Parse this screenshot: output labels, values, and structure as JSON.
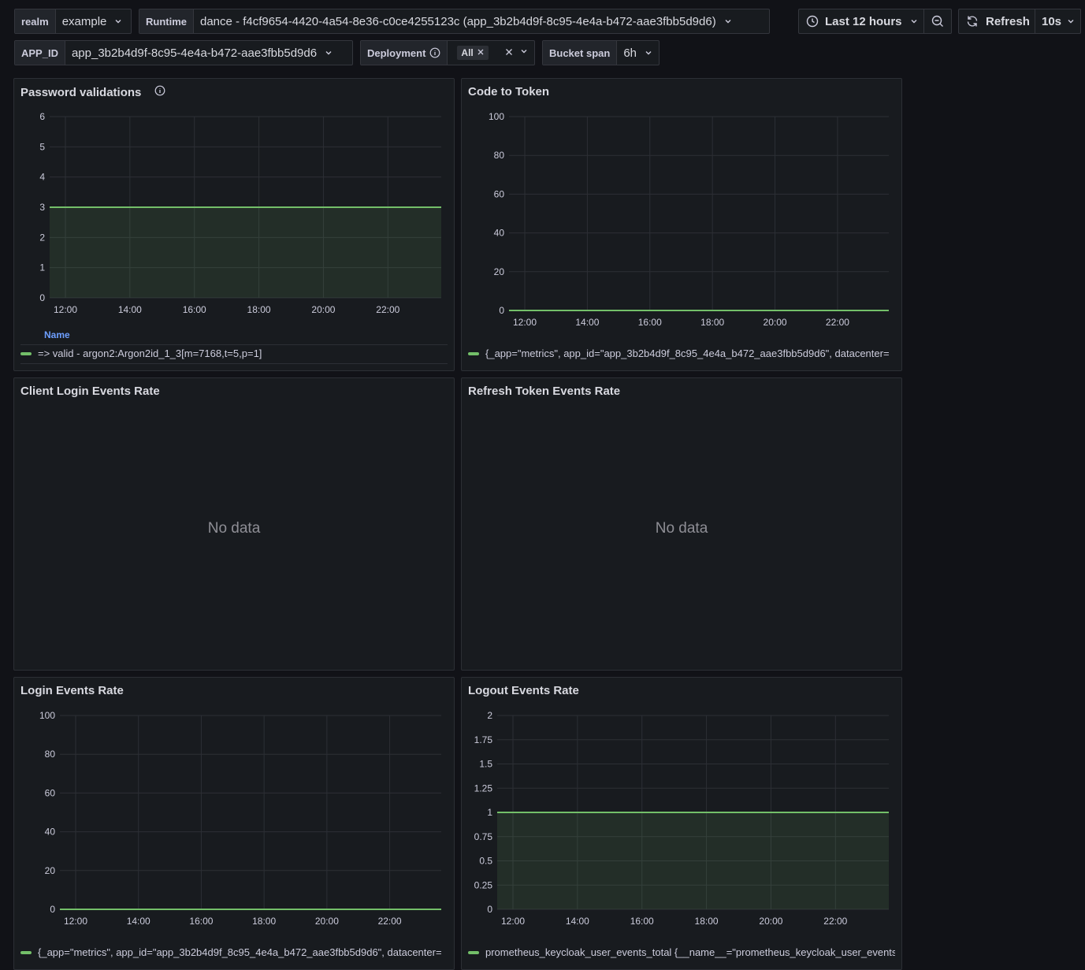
{
  "variables": {
    "realm": {
      "label": "realm",
      "value": "example"
    },
    "runtime": {
      "label": "Runtime",
      "value": "dance - f4cf9654-4420-4a54-8e36-c0ce4255123c (app_3b2b4d9f-8c95-4e4a-b472-aae3fbb5d9d6)"
    },
    "app_id": {
      "label": "APP_ID",
      "value": "app_3b2b4d9f-8c95-4e4a-b472-aae3fbb5d9d6"
    },
    "deployment": {
      "label": "Deployment",
      "chip": "All"
    },
    "bucket_span": {
      "label": "Bucket span",
      "value": "6h"
    }
  },
  "toolbar": {
    "time_range": "Last 12 hours",
    "refresh_label": "Refresh",
    "refresh_interval": "10s"
  },
  "panels": {
    "password": {
      "title": "Password validations",
      "legend_header": "Name",
      "legend": "=> valid - argon2:Argon2id_1_3[m=7168,t=5,p=1]"
    },
    "code_token": {
      "title": "Code to Token",
      "legend": "{_app=\"metrics\", app_id=\"app_3b2b4d9f_8c95_4e4a_b472_aae3fbb5d9d6\", datacenter="
    },
    "client_login": {
      "title": "Client Login Events Rate",
      "nodata": "No data"
    },
    "refresh_token": {
      "title": "Refresh Token Events Rate",
      "nodata": "No data"
    },
    "login": {
      "title": "Login Events Rate",
      "legend": "{_app=\"metrics\", app_id=\"app_3b2b4d9f_8c95_4e4a_b472_aae3fbb5d9d6\", datacenter="
    },
    "logout": {
      "title": "Logout Events Rate",
      "legend": "prometheus_keycloak_user_events_total {__name__=\"prometheus_keycloak_user_events_"
    }
  },
  "colors": {
    "series": "#73bf69",
    "grid": "#2c2f35",
    "axis_text": "#ccccdc"
  },
  "chart_data": [
    {
      "id": "password",
      "type": "area",
      "title": "Password validations",
      "x": [
        "12:00",
        "14:00",
        "16:00",
        "18:00",
        "20:00",
        "22:00"
      ],
      "yticks": [
        "0",
        "1",
        "2",
        "3",
        "4",
        "5",
        "6"
      ],
      "ylim": [
        0,
        6
      ],
      "series": [
        {
          "name": "=> valid - argon2:Argon2id_1_3[m=7168,t=5,p=1]",
          "value": 3
        }
      ]
    },
    {
      "id": "code_token",
      "type": "line",
      "title": "Code to Token",
      "x": [
        "12:00",
        "14:00",
        "16:00",
        "18:00",
        "20:00",
        "22:00"
      ],
      "yticks": [
        "0",
        "20",
        "40",
        "60",
        "80",
        "100"
      ],
      "ylim": [
        0,
        100
      ],
      "series": [
        {
          "name": "{_app=\"metrics\", app_id=\"app_3b2b4d9f_8c95_4e4a_b472_aae3fbb5d9d6\", datacenter=",
          "value": 0
        }
      ]
    },
    {
      "id": "login",
      "type": "line",
      "title": "Login Events Rate",
      "x": [
        "12:00",
        "14:00",
        "16:00",
        "18:00",
        "20:00",
        "22:00"
      ],
      "yticks": [
        "0",
        "20",
        "40",
        "60",
        "80",
        "100"
      ],
      "ylim": [
        0,
        100
      ],
      "series": [
        {
          "name": "{_app=\"metrics\", app_id=\"app_3b2b4d9f_8c95_4e4a_b472_aae3fbb5d9d6\", datacenter=",
          "value": 0
        }
      ]
    },
    {
      "id": "logout",
      "type": "area",
      "title": "Logout Events Rate",
      "x": [
        "12:00",
        "14:00",
        "16:00",
        "18:00",
        "20:00",
        "22:00"
      ],
      "yticks": [
        "0",
        "0.25",
        "0.5",
        "0.75",
        "1",
        "1.25",
        "1.5",
        "1.75",
        "2"
      ],
      "ylim": [
        0,
        2
      ],
      "series": [
        {
          "name": "prometheus_keycloak_user_events_total {__name__=\"prometheus_keycloak_user_events_",
          "value": 1
        }
      ]
    }
  ]
}
